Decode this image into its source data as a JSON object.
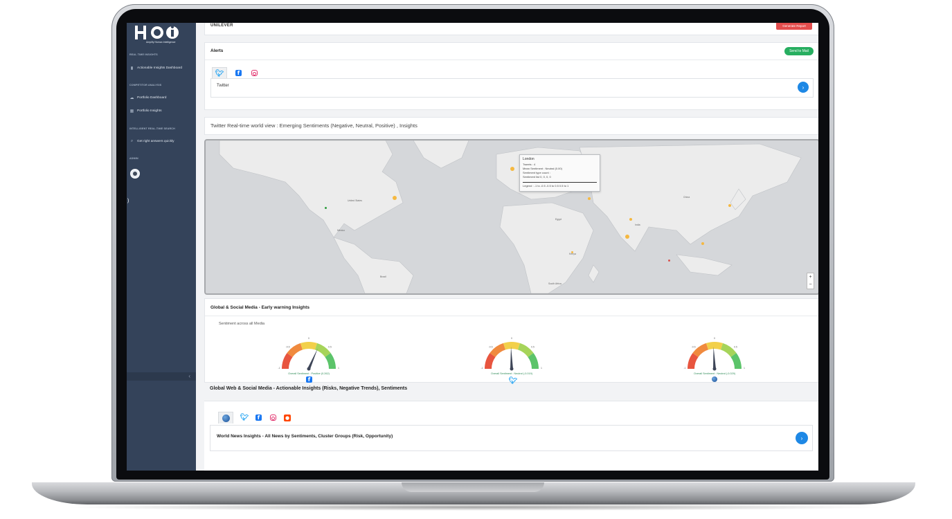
{
  "app": {
    "logo_text": "HaI",
    "logo_subtitle": "Amplify Human Intelligence"
  },
  "sidebar": {
    "sections": [
      {
        "title": "REAL TIME INSIGHTS",
        "items": [
          {
            "label": "Actionable Insights Dashboard",
            "icon": "bar-chart-icon"
          }
        ]
      },
      {
        "title": "COMPETITOR ANALYSIS",
        "items": [
          {
            "label": "Portfolio Dashboard",
            "icon": "cloud-icon"
          },
          {
            "label": "Portfolio Insights",
            "icon": "grid-icon"
          }
        ]
      },
      {
        "title": "INTELLIGENT REAL-TIME SEARCH",
        "items": [
          {
            "label": "Get right answers quickly",
            "icon": "search-icon"
          }
        ]
      },
      {
        "title": "ADMIN",
        "items": []
      }
    ],
    "collapse_glyph": "‹"
  },
  "header": {
    "company": "UNILEVER",
    "generate_report": "Generate Report"
  },
  "alerts": {
    "title": "Alerts",
    "send_button": "Send to Mail",
    "active_channel": "Twitter"
  },
  "map_section": {
    "title": "Twitter Real-time world view : Emerging Sentiments (Negative, Neutral, Positive) , Insights",
    "country_labels": [
      "United States",
      "Mexico",
      "Brazil",
      "India",
      "Egypt",
      "Kenya",
      "South Africa",
      "China"
    ],
    "tooltip": {
      "city": "London",
      "tweets": "Tweets : 4",
      "mean_sentiment": "Mean Sentiment : Neutral (0.00)",
      "type_count": "Sentiment type count :",
      "sentiment_list": "Sentiment list 0, 0, 0, 0",
      "legend": "Legend : -1 to -0.5   -0.5 to 0.5   0.5 to 1"
    },
    "zoom_in": "+",
    "zoom_out": "−"
  },
  "early_warning": {
    "title": "Global & Social Media - Early warning Insights",
    "subtitle": "Sentiment across all Media",
    "gauges": [
      {
        "label": "Overall Sentiment : Positive (0.262)",
        "value": 0.262,
        "icon": "facebook-icon"
      },
      {
        "label": "Overall Sentiment : Neutral (-0.019)",
        "value": -0.019,
        "icon": "twitter-icon"
      },
      {
        "label": "Overall Sentiment : Neutral (-0.029)",
        "value": -0.029,
        "icon": "globe-icon"
      }
    ],
    "tick_labels": [
      "-1",
      "-0.5",
      "0",
      "0.5",
      "1"
    ]
  },
  "web_social": {
    "title": "Global Web & Social Media - Actionable Insights (Risks, Negative Trends), Sentiments",
    "box_title": "World News Insights - All News by Sentiments, Cluster Groups (Risk, Opportunity)"
  },
  "colors": {
    "sidebar": "#34435a",
    "accent_blue": "#1e88e5",
    "green": "#27ae60",
    "red": "#e34d4d"
  }
}
